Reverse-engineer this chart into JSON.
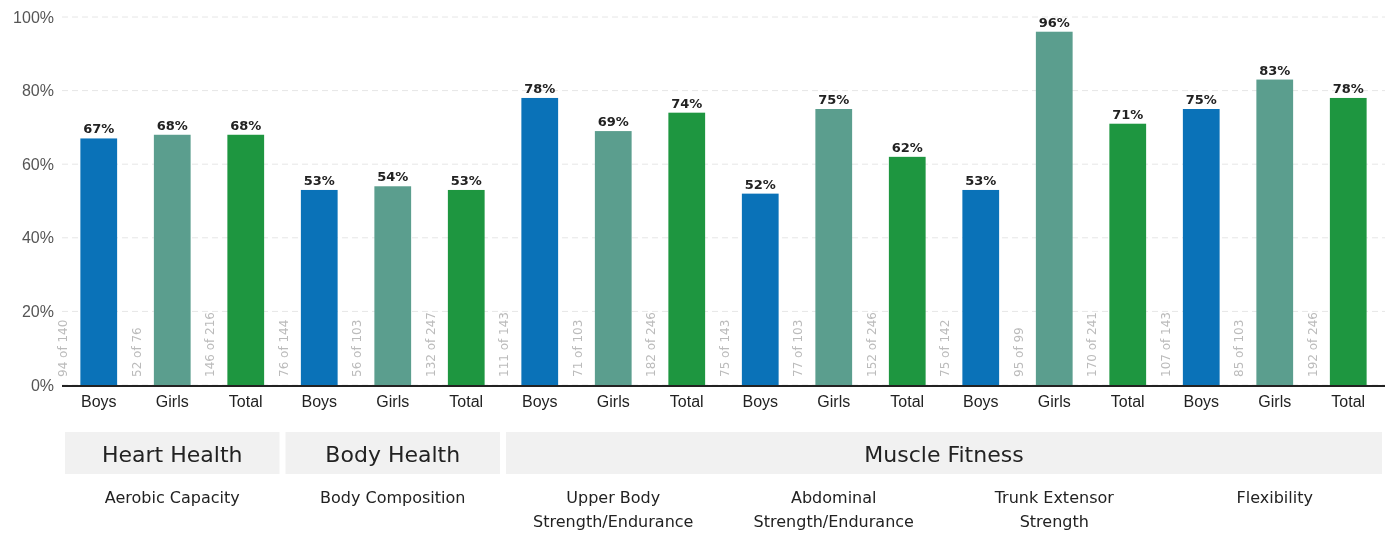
{
  "chart_data": {
    "type": "bar",
    "categories": [
      "Boys",
      "Girls",
      "Total",
      "Boys",
      "Girls",
      "Total",
      "Boys",
      "Girls",
      "Total",
      "Boys",
      "Girls",
      "Total",
      "Boys",
      "Girls",
      "Total",
      "Boys",
      "Girls",
      "Total"
    ],
    "values": [
      67,
      68,
      68,
      53,
      54,
      53,
      78,
      69,
      74,
      52,
      75,
      62,
      53,
      96,
      71,
      75,
      83,
      78
    ],
    "colors": [
      "#0a72b8",
      "#5b9e8e",
      "#1e9640",
      "#0a72b8",
      "#5b9e8e",
      "#1e9640",
      "#0a72b8",
      "#5b9e8e",
      "#1e9640",
      "#0a72b8",
      "#5b9e8e",
      "#1e9640",
      "#0a72b8",
      "#5b9e8e",
      "#1e9640",
      "#0a72b8",
      "#5b9e8e",
      "#1e9640"
    ],
    "value_labels": [
      "67%",
      "68%",
      "68%",
      "53%",
      "54%",
      "53%",
      "78%",
      "69%",
      "74%",
      "52%",
      "75%",
      "62%",
      "53%",
      "96%",
      "71%",
      "75%",
      "83%",
      "78%"
    ],
    "ylim": [
      0,
      100
    ],
    "yticks": [
      {
        "value": 0,
        "label": "0%"
      },
      {
        "value": 20,
        "label": "20%"
      },
      {
        "value": 40,
        "label": "40%"
      },
      {
        "value": 60,
        "label": "60%"
      },
      {
        "value": 80,
        "label": "80%"
      },
      {
        "value": 100,
        "label": "100%"
      }
    ],
    "grid": "y",
    "annotations": [
      "94 of 140",
      "52 of 76",
      "146 of 216",
      "76 of 144",
      "56 of 103",
      "132 of 247",
      "111 of 143",
      "71 of 103",
      "182 of 246",
      "75 of 143",
      "77 of 103",
      "152 of 246",
      "75 of 142",
      "95 of 99",
      "170 of 241",
      "107 of 143",
      "85 of 103",
      "192 of 246",
      "Heart Health",
      "Body Health",
      "Muscle Fitness",
      "Aerobic Capacity",
      "Body Composition",
      "Upper Body\nStrength/Endurance",
      "Abdominal\nStrength/Endurance",
      "Trunk Extensor\nStrength",
      "Flexibility"
    ]
  }
}
